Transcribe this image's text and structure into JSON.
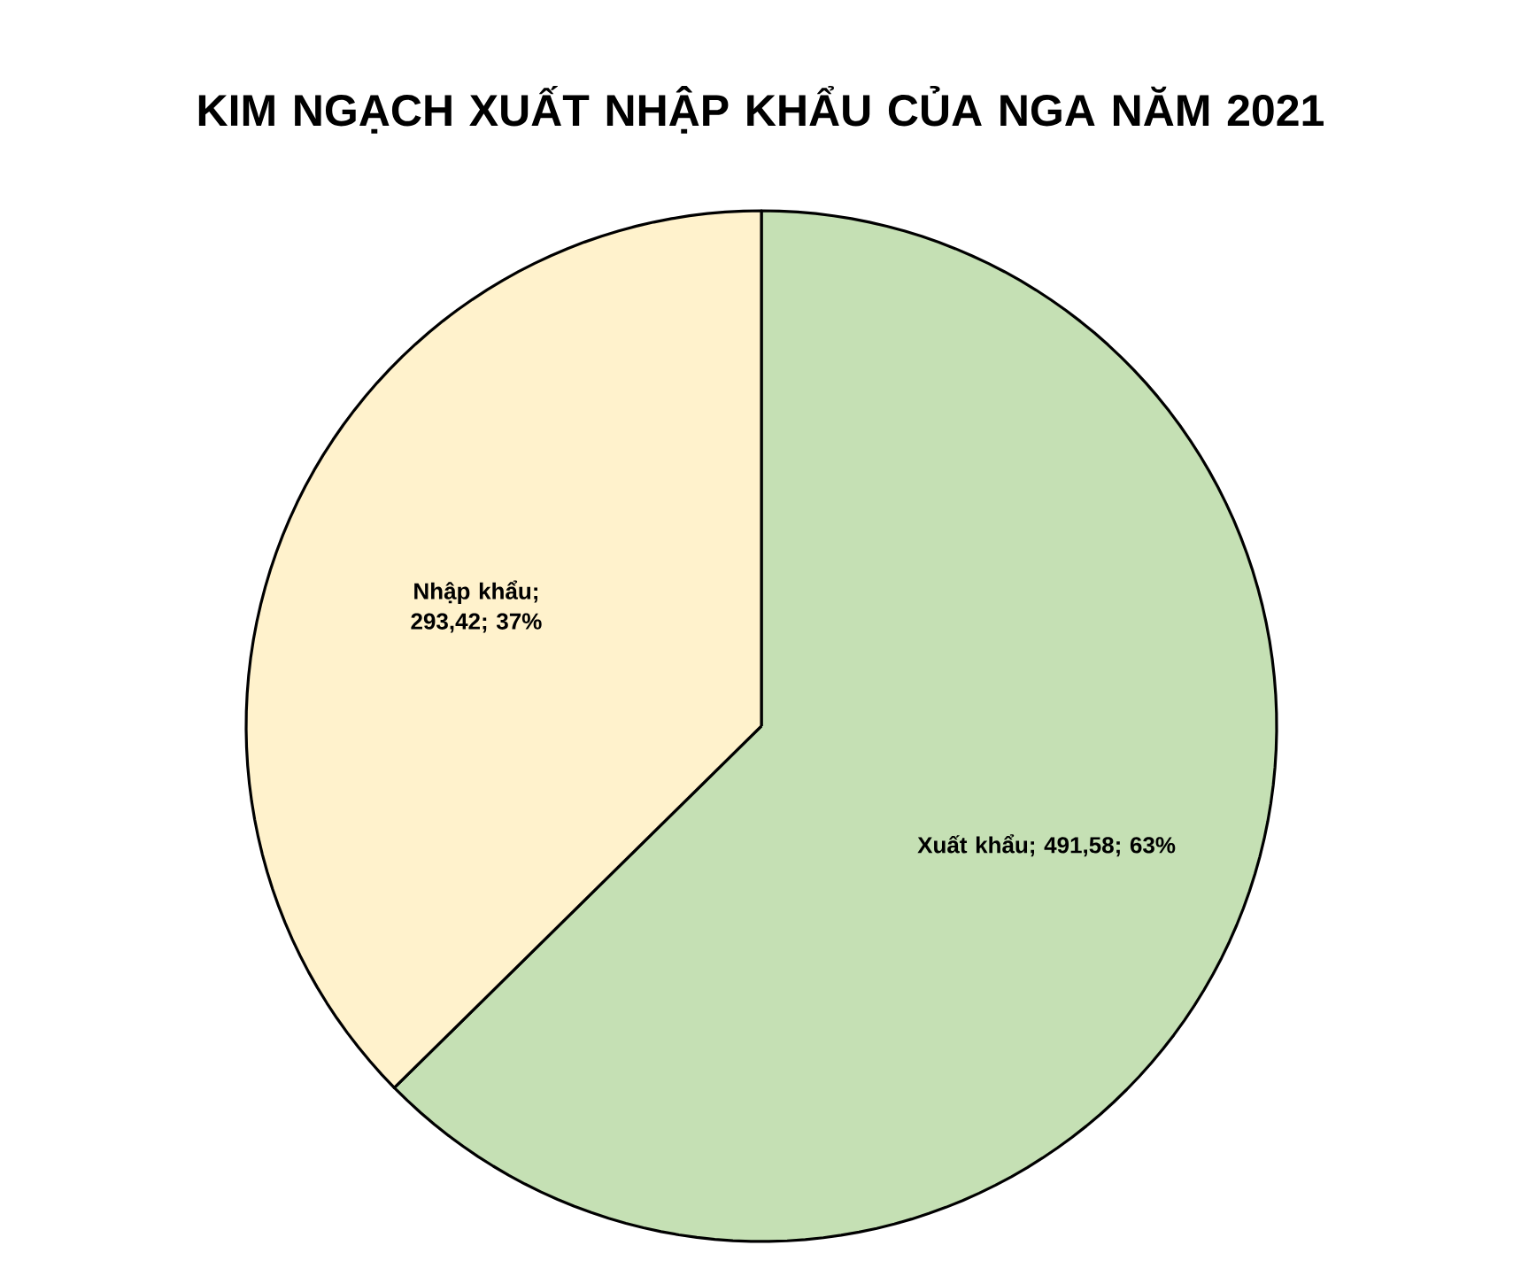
{
  "chart_data": {
    "type": "pie",
    "title": "KIM NGẠCH XUẤT NHẬP KHẨU CỦA NGA NĂM 2021",
    "categories": [
      "Xuất khẩu",
      "Nhập khẩu"
    ],
    "values": [
      491.58,
      293.42
    ],
    "colors": [
      "#c5e0b4",
      "#fff2cc"
    ],
    "value_labels": [
      "; 491,58; 63%",
      "; 293,42; 37%"
    ]
  }
}
